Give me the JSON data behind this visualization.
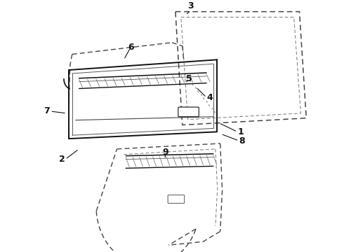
{
  "background_color": "#ffffff",
  "line_color": "#111111",
  "dashed_color": "#444444",
  "figsize": [
    4.9,
    3.6
  ],
  "dpi": 100,
  "label_fontsize": 9
}
